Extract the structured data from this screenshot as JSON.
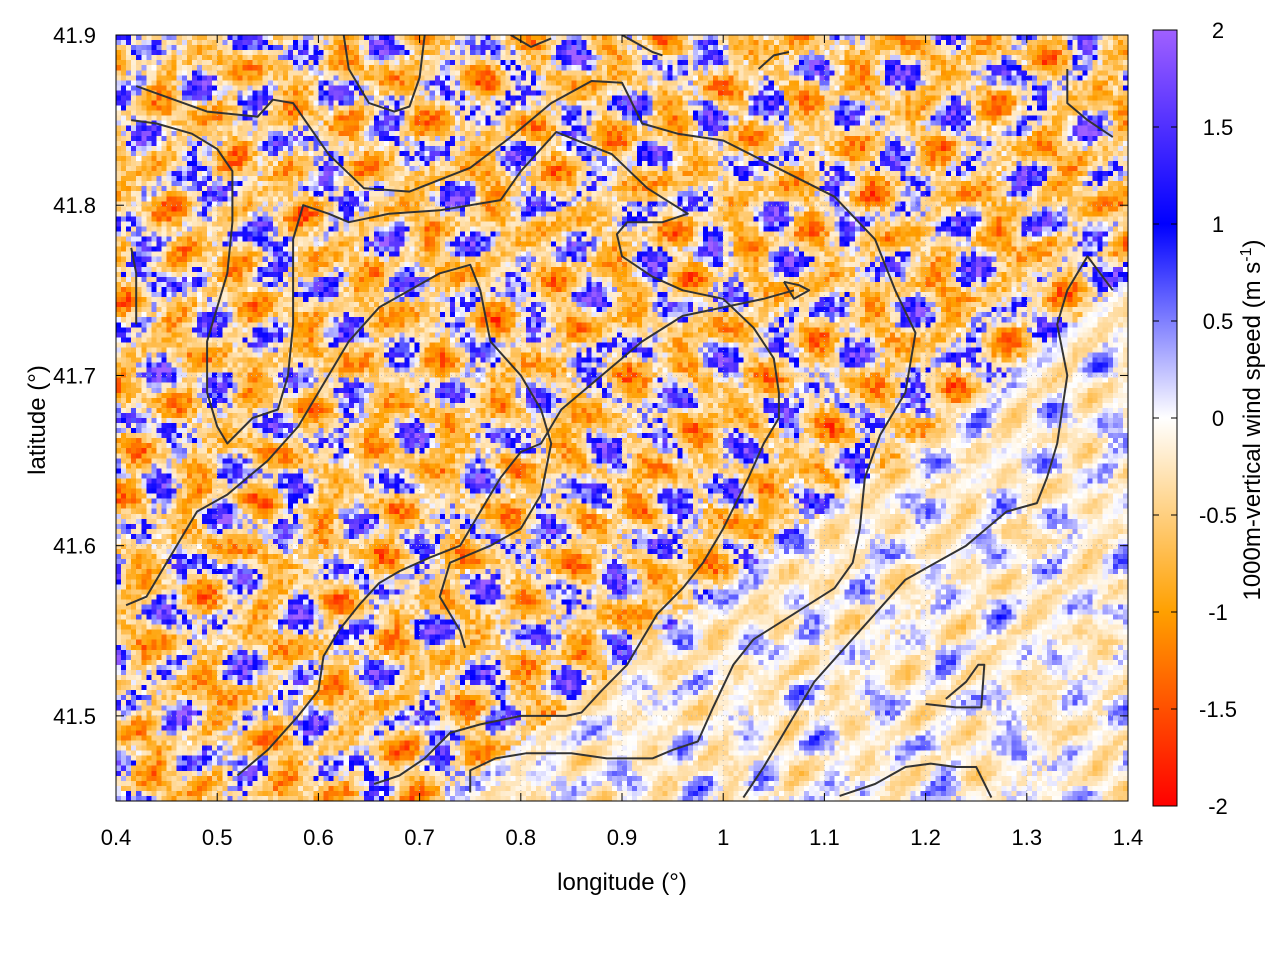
{
  "chart_data": {
    "type": "heatmap",
    "title": "",
    "xlabel": "longitude (°)",
    "ylabel": "latitude (°)",
    "xlim": [
      0.4,
      1.4
    ],
    "ylim": [
      41.45,
      41.9
    ],
    "x_ticks": [
      0.4,
      0.5,
      0.6,
      0.7,
      0.8,
      0.9,
      1.0,
      1.1,
      1.2,
      1.3,
      1.4
    ],
    "x_tick_labels": [
      "0.4",
      "0.5",
      "0.6",
      "0.7",
      "0.8",
      "0.9",
      "1",
      "1.1",
      "1.2",
      "1.3",
      "1.4"
    ],
    "y_ticks": [
      41.5,
      41.6,
      41.7,
      41.8,
      41.9
    ],
    "y_tick_labels": [
      "41.5",
      "41.6",
      "41.7",
      "41.8",
      "41.9"
    ],
    "grid": true,
    "colorbar": {
      "label_main": "1000m-vertical wind speed (m s",
      "label_sup": "-1",
      "label_end": ")",
      "range": [
        -2,
        2
      ],
      "ticks": [
        -2,
        -1.5,
        -1,
        -0.5,
        0,
        0.5,
        1,
        1.5,
        2
      ],
      "tick_labels": [
        "-2",
        "-1.5",
        "-1",
        "-0.5",
        "0",
        "0.5",
        "1",
        "1.5",
        "2"
      ],
      "stops": [
        {
          "value": -2,
          "color": "#ff0000"
        },
        {
          "value": -1,
          "color": "#ffa000"
        },
        {
          "value": 0,
          "color": "#ffffff"
        },
        {
          "value": 1,
          "color": "#0000ff"
        },
        {
          "value": 2,
          "color": "#a060ff"
        }
      ]
    },
    "field_description_values": {
      "value_min": -2,
      "value_max": 2
    },
    "contour_color": "#333333",
    "contours": [
      [
        [
          0.42,
          41.87
        ],
        [
          0.49,
          41.855
        ],
        [
          0.54,
          41.852
        ],
        [
          0.555,
          41.862
        ],
        [
          0.575,
          41.86
        ],
        [
          0.61,
          41.83
        ],
        [
          0.645,
          41.81
        ],
        [
          0.69,
          41.808
        ],
        [
          0.75,
          41.822
        ],
        [
          0.79,
          41.84
        ],
        [
          0.83,
          41.86
        ],
        [
          0.87,
          41.873
        ],
        [
          0.9,
          41.872
        ],
        [
          0.92,
          41.848
        ],
        [
          0.955,
          41.842
        ],
        [
          1.0,
          41.838
        ],
        [
          1.06,
          41.82
        ],
        [
          1.11,
          41.805
        ],
        [
          1.15,
          41.78
        ],
        [
          1.17,
          41.75
        ],
        [
          1.19,
          41.725
        ],
        [
          1.18,
          41.69
        ],
        [
          1.155,
          41.665
        ],
        [
          1.14,
          41.64
        ],
        [
          1.135,
          41.61
        ],
        [
          1.128,
          41.59
        ],
        [
          1.11,
          41.575
        ],
        [
          1.07,
          41.56
        ],
        [
          1.03,
          41.545
        ],
        [
          1.01,
          41.53
        ],
        [
          0.99,
          41.505
        ],
        [
          0.975,
          41.485
        ],
        [
          0.95,
          41.48
        ],
        [
          0.93,
          41.475
        ],
        [
          0.885,
          41.475
        ],
        [
          0.85,
          41.478
        ],
        [
          0.805,
          41.478
        ],
        [
          0.775,
          41.475
        ],
        [
          0.75,
          41.468
        ],
        [
          0.75,
          41.455
        ]
      ],
      [
        [
          0.415,
          41.85
        ],
        [
          0.44,
          41.848
        ],
        [
          0.475,
          41.842
        ],
        [
          0.5,
          41.833
        ],
        [
          0.515,
          41.82
        ],
        [
          0.515,
          41.79
        ],
        [
          0.51,
          41.76
        ],
        [
          0.5,
          41.74
        ],
        [
          0.49,
          41.72
        ],
        [
          0.49,
          41.69
        ],
        [
          0.5,
          41.67
        ],
        [
          0.51,
          41.66
        ],
        [
          0.535,
          41.675
        ],
        [
          0.56,
          41.68
        ],
        [
          0.57,
          41.7
        ],
        [
          0.575,
          41.73
        ],
        [
          0.575,
          41.78
        ],
        [
          0.585,
          41.8
        ],
        [
          0.61,
          41.795
        ],
        [
          0.63,
          41.79
        ],
        [
          0.67,
          41.795
        ],
        [
          0.72,
          41.797
        ],
        [
          0.78,
          41.803
        ],
        [
          0.8,
          41.82
        ],
        [
          0.835,
          41.843
        ],
        [
          0.86,
          41.837
        ],
        [
          0.89,
          41.83
        ],
        [
          0.925,
          41.81
        ],
        [
          0.965,
          41.795
        ],
        [
          0.94,
          41.79
        ],
        [
          0.905,
          41.79
        ],
        [
          0.895,
          41.783
        ],
        [
          0.9,
          41.77
        ],
        [
          0.93,
          41.758
        ],
        [
          0.96,
          41.75
        ],
        [
          1.0,
          41.745
        ],
        [
          1.03,
          41.728
        ],
        [
          1.05,
          41.71
        ],
        [
          1.055,
          41.69
        ],
        [
          1.055,
          41.675
        ],
        [
          1.04,
          41.66
        ],
        [
          1.025,
          41.64
        ],
        [
          1.0,
          41.61
        ],
        [
          0.98,
          41.59
        ],
        [
          0.96,
          41.575
        ],
        [
          0.935,
          41.56
        ],
        [
          0.92,
          41.545
        ],
        [
          0.905,
          41.53
        ],
        [
          0.88,
          41.515
        ],
        [
          0.86,
          41.502
        ],
        [
          0.845,
          41.5
        ],
        [
          0.8,
          41.5
        ],
        [
          0.76,
          41.495
        ],
        [
          0.73,
          41.49
        ],
        [
          0.705,
          41.475
        ],
        [
          0.68,
          41.465
        ],
        [
          0.655,
          41.46
        ]
      ],
      [
        [
          0.52,
          41.465
        ],
        [
          0.55,
          41.48
        ],
        [
          0.58,
          41.5
        ],
        [
          0.6,
          41.515
        ],
        [
          0.605,
          41.535
        ],
        [
          0.62,
          41.55
        ],
        [
          0.64,
          41.565
        ],
        [
          0.66,
          41.578
        ],
        [
          0.68,
          41.585
        ],
        [
          0.71,
          41.593
        ],
        [
          0.74,
          41.6
        ],
        [
          0.76,
          41.62
        ],
        [
          0.78,
          41.64
        ],
        [
          0.8,
          41.655
        ],
        [
          0.82,
          41.66
        ],
        [
          0.84,
          41.68
        ],
        [
          0.86,
          41.69
        ],
        [
          0.88,
          41.7
        ],
        [
          0.92,
          41.72
        ],
        [
          0.96,
          41.735
        ],
        [
          1.0,
          41.74
        ],
        [
          1.04,
          41.745
        ],
        [
          1.07,
          41.75
        ]
      ],
      [
        [
          0.41,
          41.565
        ],
        [
          0.43,
          41.57
        ],
        [
          0.46,
          41.6
        ],
        [
          0.48,
          41.62
        ],
        [
          0.51,
          41.63
        ],
        [
          0.55,
          41.65
        ],
        [
          0.58,
          41.67
        ],
        [
          0.6,
          41.69
        ],
        [
          0.63,
          41.72
        ],
        [
          0.66,
          41.74
        ],
        [
          0.69,
          41.75
        ],
        [
          0.72,
          41.76
        ],
        [
          0.75,
          41.765
        ],
        [
          0.76,
          41.75
        ],
        [
          0.77,
          41.72
        ],
        [
          0.8,
          41.7
        ],
        [
          0.82,
          41.68
        ],
        [
          0.83,
          41.66
        ],
        [
          0.82,
          41.63
        ],
        [
          0.8,
          41.61
        ],
        [
          0.77,
          41.6
        ],
        [
          0.73,
          41.59
        ],
        [
          0.72,
          41.57
        ],
        [
          0.74,
          41.55
        ],
        [
          0.745,
          41.54
        ]
      ],
      [
        [
          1.02,
          41.452
        ],
        [
          1.04,
          41.47
        ],
        [
          1.07,
          41.5
        ],
        [
          1.09,
          41.52
        ],
        [
          1.12,
          41.54
        ],
        [
          1.15,
          41.56
        ],
        [
          1.18,
          41.58
        ],
        [
          1.21,
          41.59
        ],
        [
          1.24,
          41.6
        ],
        [
          1.26,
          41.61
        ],
        [
          1.28,
          41.62
        ],
        [
          1.31,
          41.625
        ],
        [
          1.32,
          41.64
        ],
        [
          1.33,
          41.66
        ],
        [
          1.335,
          41.68
        ],
        [
          1.34,
          41.7
        ],
        [
          1.33,
          41.73
        ],
        [
          1.34,
          41.75
        ],
        [
          1.36,
          41.77
        ],
        [
          1.385,
          41.75
        ]
      ],
      [
        [
          1.2,
          41.507
        ],
        [
          1.23,
          41.505
        ],
        [
          1.255,
          41.505
        ],
        [
          1.258,
          41.53
        ],
        [
          1.252,
          41.53
        ],
        [
          1.24,
          41.52
        ],
        [
          1.22,
          41.51
        ]
      ],
      [
        [
          1.115,
          41.453
        ],
        [
          1.15,
          41.46
        ],
        [
          1.18,
          41.47
        ],
        [
          1.205,
          41.472
        ],
        [
          1.23,
          41.47
        ],
        [
          1.25,
          41.47
        ],
        [
          1.265,
          41.452
        ]
      ],
      [
        [
          0.625,
          41.9
        ],
        [
          0.63,
          41.88
        ],
        [
          0.65,
          41.86
        ],
        [
          0.675,
          41.855
        ],
        [
          0.69,
          41.858
        ],
        [
          0.7,
          41.875
        ],
        [
          0.705,
          41.9
        ]
      ],
      [
        [
          0.79,
          41.9
        ],
        [
          0.81,
          41.893
        ],
        [
          0.83,
          41.898
        ]
      ],
      [
        [
          0.9,
          41.9
        ],
        [
          0.93,
          41.89
        ],
        [
          0.94,
          41.888
        ]
      ],
      [
        [
          1.035,
          41.88
        ],
        [
          1.05,
          41.888
        ],
        [
          1.065,
          41.89
        ]
      ],
      [
        [
          1.34,
          41.88
        ],
        [
          1.34,
          41.86
        ],
        [
          1.36,
          41.85
        ],
        [
          1.385,
          41.84
        ]
      ],
      [
        [
          0.415,
          41.775
        ],
        [
          0.42,
          41.76
        ],
        [
          0.42,
          41.73
        ]
      ],
      [
        [
          1.06,
          41.755
        ],
        [
          1.075,
          41.753
        ],
        [
          1.085,
          41.75
        ],
        [
          1.07,
          41.745
        ],
        [
          1.06,
          41.755
        ]
      ]
    ]
  }
}
